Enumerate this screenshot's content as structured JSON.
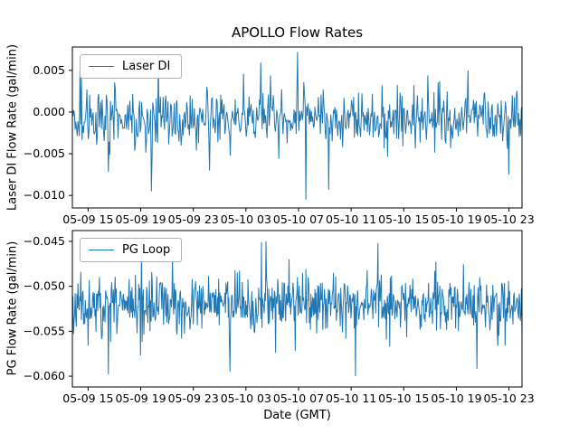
{
  "figure": {
    "title": "APOLLO Flow Rates",
    "xlabel": "Date (GMT)"
  },
  "colors": {
    "line": "#1f77b4",
    "axes": "#000000",
    "tick_text": "#000000",
    "legend_border": "#b0b0b0"
  },
  "xaxis": {
    "labels": [
      "05-09 15",
      "05-09 19",
      "05-09 23",
      "05-10 03",
      "05-10 07",
      "05-10 11",
      "05-10 15",
      "05-10 19",
      "05-10 23"
    ],
    "fracs": [
      0.035,
      0.152,
      0.269,
      0.386,
      0.503,
      0.62,
      0.737,
      0.854,
      0.971
    ]
  },
  "chart_data": [
    {
      "type": "line",
      "name": "Laser DI",
      "legend": "Laser DI",
      "ylabel": "Laser DI Flow Rate (gal/min)",
      "ylim": [
        -0.0115,
        0.0078
      ],
      "yticks": [
        0.005,
        0.0,
        -0.005,
        -0.01
      ],
      "ytick_labels": [
        "0.005",
        "0.000",
        "−0.005",
        "−0.010"
      ],
      "mean": -0.0008,
      "std": 0.0016,
      "tail_prob": 0.05,
      "tail_scale": 2.2,
      "clamp": [
        -0.0105,
        0.0072
      ],
      "n_points": 650,
      "seed": 3,
      "spikes": [
        [
          0.02,
          0.0045
        ],
        [
          0.08,
          -0.0072
        ],
        [
          0.175,
          -0.0095
        ],
        [
          0.305,
          -0.007
        ],
        [
          0.38,
          0.0046
        ],
        [
          0.44,
          0.0044
        ],
        [
          0.5,
          0.0072
        ],
        [
          0.52,
          -0.0105
        ],
        [
          0.57,
          -0.0093
        ],
        [
          0.79,
          0.0044
        ],
        [
          0.88,
          0.005
        ],
        [
          0.97,
          -0.0075
        ]
      ]
    },
    {
      "type": "line",
      "name": "PG Loop",
      "legend": "PG Loop",
      "ylabel": "PG Flow Rate (gal/min)",
      "ylim": [
        -0.0612,
        -0.0438
      ],
      "yticks": [
        -0.045,
        -0.05,
        -0.055,
        -0.06
      ],
      "ytick_labels": [
        "−0.045",
        "−0.050",
        "−0.055",
        "−0.060"
      ],
      "mean": -0.052,
      "std": 0.0015,
      "tail_prob": 0.06,
      "tail_scale": 2.0,
      "clamp": [
        -0.06,
        -0.045
      ],
      "n_points": 800,
      "seed": 11,
      "spikes": [
        [
          0.08,
          -0.0598
        ],
        [
          0.35,
          -0.0595
        ],
        [
          0.42,
          -0.0451
        ],
        [
          0.63,
          -0.06
        ],
        [
          0.68,
          -0.0452
        ],
        [
          0.9,
          -0.0592
        ]
      ]
    }
  ]
}
